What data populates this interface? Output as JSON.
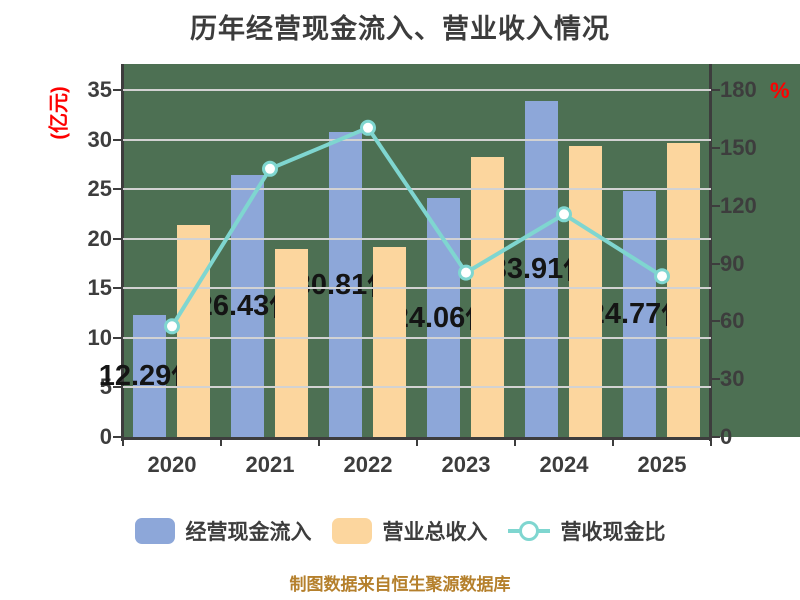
{
  "title": "历年经营现金流入、营业收入情况",
  "footer": "制图数据来自恒生聚源数据库",
  "left_axis": {
    "unit": "(亿元)",
    "ticks": [
      0,
      5,
      10,
      15,
      20,
      25,
      30,
      35
    ],
    "range": [
      0,
      35
    ]
  },
  "right_axis": {
    "unit": "%",
    "ticks": [
      0,
      30,
      60,
      90,
      120,
      150,
      180
    ],
    "range": [
      0,
      180
    ]
  },
  "chart_data": {
    "type": "bar",
    "categories": [
      "2020",
      "2021",
      "2022",
      "2023",
      "2024",
      "2025"
    ],
    "series": [
      {
        "name": "经营现金流入",
        "type": "bar",
        "axis": "left",
        "values": [
          12.29,
          26.43,
          30.81,
          24.06,
          33.91,
          24.77
        ],
        "labels": [
          "12.29亿",
          "26.43亿",
          "30.81亿",
          "24.06亿",
          "33.91亿",
          "24.77亿"
        ]
      },
      {
        "name": "营业总收入",
        "type": "bar",
        "axis": "left",
        "values": [
          21.4,
          19.0,
          19.2,
          28.2,
          29.4,
          29.7
        ]
      },
      {
        "name": "营收现金比",
        "type": "line",
        "axis": "right",
        "unit": "%",
        "values": [
          57.4,
          139.1,
          160.4,
          85.3,
          115.5,
          83.4
        ]
      }
    ],
    "grid": true,
    "legend_position": "bottom",
    "ylim_left": [
      0,
      35
    ],
    "ylim_right": [
      0,
      180
    ]
  },
  "colors": {
    "plot_bg": "#4d7053",
    "bar_blue": "#8da7d9",
    "bar_orange": "#fcd69e",
    "line_teal": "#7fd6d0",
    "axis": "#3d3d3d",
    "grid": "#d2d2d2",
    "data_label": "#141414",
    "unit_red": "#fe0000",
    "footer_gold": "#b5802c",
    "title": "#3c3c3c"
  }
}
